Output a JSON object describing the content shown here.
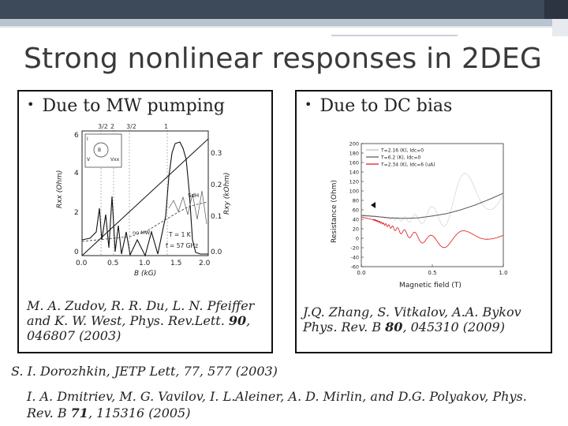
{
  "slide": {
    "title": "Strong nonlinear responses in 2DEG"
  },
  "left_panel": {
    "bullet": "Due to MW pumping",
    "citation": {
      "authors": "M. A. Zudov, R. R. Du, L. N. Pfeiffer and K. W. West, Phys. Rev.Lett.",
      "volume": "90",
      "pages": ", 046807 (2003)"
    },
    "figure": {
      "top_labels": [
        "3/2",
        "2",
        "3/2",
        "1"
      ],
      "xlabel": "B (kG)",
      "x_ticks": [
        "0.0",
        "0.5",
        "1.0",
        "1.5",
        "2.0"
      ],
      "ylabel_left": "Rxx (Ohm)",
      "y_ticks_left": [
        "0",
        "2",
        "4",
        "6"
      ],
      "ylabel_right": "Rxy (kOhm)",
      "y_ticks_right": [
        "0.0",
        "0.1",
        "0.2",
        "0.3"
      ],
      "annotations": [
        "SdH",
        "no MW",
        "T = 1 K",
        "f = 57 GHz"
      ],
      "inset_labels": [
        "V",
        "I",
        "B",
        "Vxx"
      ]
    }
  },
  "right_panel": {
    "bullet": "Due to DC bias",
    "citation": {
      "authors": "J.Q. Zhang, S. Vitkalov, A.A. Bykov Phys. Rev. B",
      "volume": "80",
      "pages": ", 045310 (2009)"
    },
    "chart_data": {
      "type": "line",
      "xlabel": "Magnetic field (T)",
      "ylabel": "Resistance (Ohm)",
      "xlim": [
        0,
        1.0
      ],
      "ylim": [
        -60,
        200
      ],
      "x_ticks": [
        "0.0",
        "0.5",
        "1.0"
      ],
      "y_ticks": [
        "200",
        "180",
        "160",
        "140",
        "120",
        "100",
        "80",
        "60",
        "40",
        "20",
        "0",
        "-20",
        "-40",
        "-60"
      ],
      "legend": [
        {
          "name": "T=2.16 (K), Idc=0",
          "color": "#bdbdbd"
        },
        {
          "name": "T=6.2 (K), Idc=0",
          "color": "#555555"
        },
        {
          "name": "T=2.34 (K), Idc=6 (uA)",
          "color": "#e01010"
        }
      ],
      "legend_position": "top-right",
      "series": [
        {
          "name": "T=2.16 (K), Idc=0",
          "envelope": "oscillating, growing",
          "x": [
            0.0,
            0.1,
            0.2,
            0.3,
            0.4,
            0.5,
            0.6,
            0.7,
            0.8,
            0.9,
            1.0
          ],
          "center": [
            50,
            47,
            42,
            40,
            42,
            48,
            60,
            80,
            105,
            125,
            135
          ],
          "amplitude": [
            0,
            0,
            2,
            5,
            10,
            20,
            35,
            50,
            60,
            65,
            70
          ]
        },
        {
          "name": "T=6.2 (K), Idc=0",
          "x": [
            0.0,
            0.1,
            0.2,
            0.3,
            0.4,
            0.5,
            0.6,
            0.7,
            0.8,
            0.9,
            1.0
          ],
          "values": [
            48,
            46,
            43,
            42,
            43,
            47,
            52,
            60,
            70,
            82,
            95
          ]
        },
        {
          "name": "T=2.34 (K), Idc=6 (uA)",
          "x": [
            0.0,
            0.1,
            0.2,
            0.3,
            0.4,
            0.5,
            0.6,
            0.7,
            0.8,
            0.9,
            1.0
          ],
          "center": [
            45,
            38,
            25,
            12,
            2,
            -6,
            -6,
            0,
            6,
            10,
            12
          ],
          "amplitude": [
            0,
            1,
            3,
            6,
            9,
            12,
            14,
            15,
            14,
            12,
            10
          ]
        }
      ]
    }
  },
  "references": {
    "ref1": "S. I. Dorozhkin, JETP Lett, 77, 577 (2003)",
    "ref2_pre": "I. A. Dmitriev, M. G. Vavilov, I. L.Aleiner, A. D. Mirlin, and D.G. Polyakov, Phys. Rev. B ",
    "ref2_vol": "71",
    "ref2_post": ", 115316 (2005)"
  },
  "colors": {
    "accent_dark": "#3d4a5a",
    "accent_light": "#b9c4cf",
    "title": "#3a3a3a",
    "red_series": "#e01010"
  }
}
